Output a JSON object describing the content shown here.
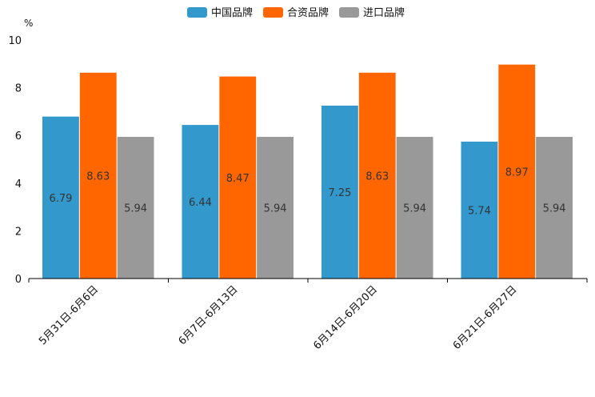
{
  "chart_data": {
    "type": "bar",
    "title": "",
    "xlabel": "",
    "ylabel": "%",
    "ylim": [
      0,
      10
    ],
    "yticks": [
      0,
      2,
      4,
      6,
      8,
      10
    ],
    "categories": [
      "5月31日-6月6日",
      "6月7日-6月13日",
      "6月14日-6月20日",
      "6月21日-6月27日"
    ],
    "series": [
      {
        "name": "中国品牌",
        "color": "#3399cc",
        "values": [
          6.79,
          6.44,
          7.25,
          5.74
        ]
      },
      {
        "name": "合资品牌",
        "color": "#ff6600",
        "values": [
          8.63,
          8.47,
          8.63,
          8.97
        ]
      },
      {
        "name": "进口品牌",
        "color": "#999999",
        "values": [
          5.94,
          5.94,
          5.94,
          5.94
        ]
      }
    ],
    "legend_position": "top-center",
    "grid": false
  }
}
